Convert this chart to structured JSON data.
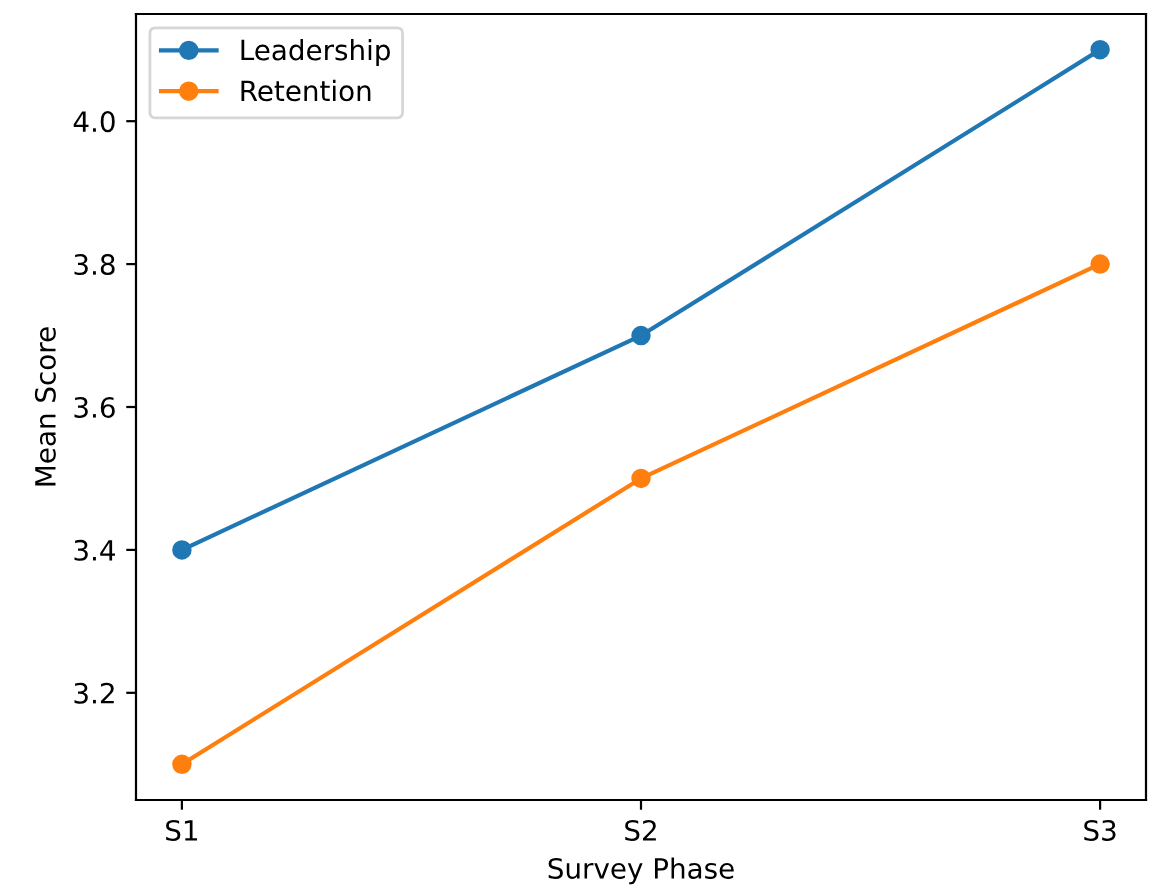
{
  "chart_data": {
    "type": "line",
    "xlabel": "Survey Phase",
    "ylabel": "Mean Score",
    "categories": [
      "S1",
      "S2",
      "S3"
    ],
    "series": [
      {
        "name": "Leadership",
        "color": "#1f77b4",
        "values": [
          3.4,
          3.7,
          4.1
        ]
      },
      {
        "name": "Retention",
        "color": "#ff7f0e",
        "values": [
          3.1,
          3.5,
          3.8
        ]
      }
    ],
    "ylim": [
      3.05,
      4.15
    ],
    "yticks": [
      {
        "value": 3.2,
        "label": "3.2"
      },
      {
        "value": 3.4,
        "label": "3.4"
      },
      {
        "value": 3.6,
        "label": "3.6"
      },
      {
        "value": 3.8,
        "label": "3.8"
      },
      {
        "value": 4.0,
        "label": "4.0"
      }
    ],
    "marker": "circle",
    "line_style": "solid",
    "legend": "top left",
    "grid": false
  }
}
